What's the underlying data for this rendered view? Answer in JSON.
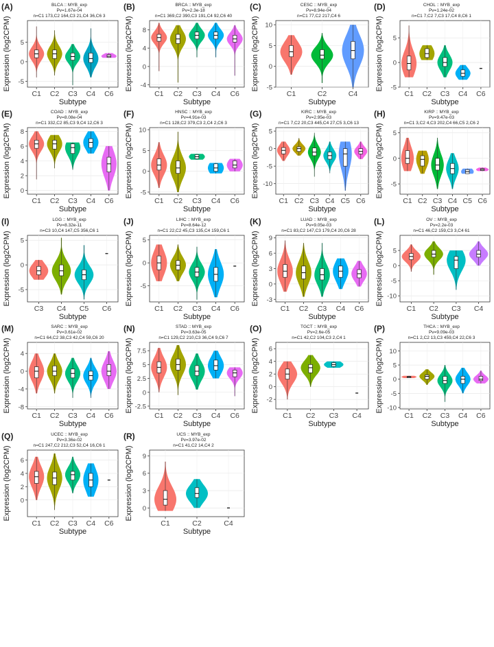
{
  "figure": {
    "ylabel": "Expression (log2CPM)",
    "xlabel": "Subtype"
  },
  "colors": {
    "C1": "#F8766D",
    "C2": "#A3A500",
    "C3": "#00BF7D",
    "C4": "#00B0F6",
    "C5": "#5E8DF0",
    "C6": "#E76BF3",
    "grid": "#d9d9d9",
    "axis": "#333333"
  },
  "chart_data": [
    {
      "type": "violin",
      "panel": "(A)",
      "title": "BLCA :: MYB_exp",
      "pv": "Pv=1.67e-04",
      "counts": "n=C1 173,C2 164,C3 21,C4 36,C6 3",
      "xlabel": "Subtype",
      "ylabel": "Expression (log2CPM)",
      "ylim": [
        -6.5,
        10.5
      ],
      "yticks": [
        -5,
        0,
        5
      ],
      "categories": [
        "C1",
        "C2",
        "C3",
        "C4",
        "C6"
      ],
      "colors": [
        "#F8766D",
        "#A3A500",
        "#00BF7D",
        "#00A5C4",
        "#E76BF3"
      ],
      "median": [
        2,
        2,
        1.3,
        0.8,
        1.4
      ],
      "q1": [
        1,
        0.8,
        0.4,
        -0.2,
        1.1
      ],
      "q3": [
        3,
        3,
        2.2,
        2.2,
        1.8
      ],
      "min": [
        -4,
        -3.5,
        -6,
        -4,
        1
      ],
      "max": [
        9,
        8,
        4.5,
        8.5,
        2.2
      ]
    },
    {
      "type": "violin",
      "panel": "(B)",
      "title": "BRCA :: MYB_exp",
      "pv": "Pv=2.3e-18",
      "counts": "n=C1 369,C2 390,C3 191,C4 92,C6 40",
      "xlabel": "Subtype",
      "ylabel": "Expression (log2CPM)",
      "ylim": [
        -4.5,
        10
      ],
      "yticks": [
        -4,
        0,
        4,
        8
      ],
      "categories": [
        "C1",
        "C2",
        "C3",
        "C4",
        "C6"
      ],
      "colors": [
        "#F8766D",
        "#A3A500",
        "#00BF7D",
        "#00B0F6",
        "#E76BF3"
      ],
      "median": [
        6.3,
        6,
        6.8,
        6.8,
        6
      ],
      "q1": [
        5.5,
        5,
        6,
        6,
        5.3
      ],
      "q3": [
        7,
        7,
        7.5,
        7.5,
        6.8
      ],
      "min": [
        -1,
        -3.5,
        2,
        2,
        -2
      ],
      "max": [
        9.5,
        9,
        9.5,
        9.5,
        9
      ]
    },
    {
      "type": "violin",
      "panel": "(C)",
      "title": "CESC :: MYB_exp",
      "pv": "Pv=8.94e-04",
      "counts": "n=C1 77,C2 217,C4 6",
      "xlabel": "Subtype",
      "ylabel": "Expression (log2CPM)",
      "ylim": [
        -5,
        11
      ],
      "yticks": [
        -5,
        0,
        5,
        10
      ],
      "categories": [
        "C1",
        "C2",
        "C4"
      ],
      "colors": [
        "#F8766D",
        "#00BA38",
        "#619CFF"
      ],
      "median": [
        3.5,
        2.7,
        3.8
      ],
      "q1": [
        2.3,
        1.8,
        1.8
      ],
      "q3": [
        5,
        4,
        6
      ],
      "min": [
        -2,
        -4,
        -5
      ],
      "max": [
        7.5,
        8,
        10
      ]
    },
    {
      "type": "violin",
      "panel": "(D)",
      "title": "CHOL :: MYB_exp",
      "pv": "Pv=1.24e-02",
      "counts": "n=C1 7,C2 7,C3 17,C4 8,C6 1",
      "xlabel": "Subtype",
      "ylabel": "Expression (log2CPM)",
      "ylim": [
        -5,
        8.5
      ],
      "yticks": [
        -5,
        0,
        5
      ],
      "categories": [
        "C1",
        "C2",
        "C3",
        "C4",
        "C6"
      ],
      "colors": [
        "#F8766D",
        "#A3A500",
        "#00BF7D",
        "#00B0F6",
        "#E76BF3"
      ],
      "median": [
        -0.2,
        1.8,
        0,
        -2.2,
        -1.2
      ],
      "q1": [
        -1.5,
        1,
        -0.8,
        -2.8,
        -1.2
      ],
      "q3": [
        1.3,
        2.8,
        1,
        -1.5,
        -1.2
      ],
      "min": [
        -3,
        0.5,
        -3,
        -3.5,
        -1.2
      ],
      "max": [
        7.5,
        3.5,
        3.5,
        -0.5,
        -1.2
      ]
    },
    {
      "type": "violin",
      "panel": "(E)",
      "title": "COAD :: MYB_exp",
      "pv": "Pv=8.08e-04",
      "counts": "n=C1 332,C2 85,C3 9,C4 12,C6 3",
      "xlabel": "Subtype",
      "ylabel": "Expression (log2CPM)",
      "ylim": [
        -0.5,
        8.5
      ],
      "yticks": [
        0,
        2,
        4,
        6,
        8
      ],
      "categories": [
        "C1",
        "C2",
        "C3",
        "C4",
        "C6"
      ],
      "colors": [
        "#F8766D",
        "#A3A500",
        "#00BF7D",
        "#00B0F6",
        "#E76BF3"
      ],
      "median": [
        6.3,
        6.3,
        5.8,
        6.5,
        3.6
      ],
      "q1": [
        5.7,
        5.6,
        5,
        5.8,
        2.5
      ],
      "q3": [
        6.8,
        6.8,
        6.3,
        7,
        4.5
      ],
      "min": [
        1.5,
        3,
        2.8,
        5,
        0
      ],
      "max": [
        8,
        7.5,
        6.5,
        8,
        6
      ]
    },
    {
      "type": "violin",
      "panel": "(F)",
      "title": "HNSC :: MYB_exp",
      "pv": "Pv=4.91e-03",
      "counts": "n=C1 128,C2 379,C3 2,C4 2,C6 3",
      "xlabel": "Subtype",
      "ylabel": "Expression (log2CPM)",
      "ylim": [
        -5.5,
        10.5
      ],
      "yticks": [
        -5,
        0,
        5,
        10
      ],
      "categories": [
        "C1",
        "C2",
        "C3",
        "C4",
        "C6"
      ],
      "colors": [
        "#F8766D",
        "#A3A500",
        "#00BF7D",
        "#00B0F6",
        "#E76BF3"
      ],
      "median": [
        1.5,
        0.8,
        3.5,
        0.8,
        1.5
      ],
      "q1": [
        0.3,
        -0.5,
        3,
        0,
        0.8
      ],
      "q3": [
        3,
        2.5,
        4,
        1.8,
        2.5
      ],
      "min": [
        -4,
        -5,
        2.8,
        -0.5,
        0
      ],
      "max": [
        7,
        9.5,
        4.2,
        2,
        3
      ]
    },
    {
      "type": "violin",
      "panel": "(G)",
      "title": "KIRC :: MYB_exp",
      "pv": "Pv=2.95e-03",
      "counts": "n=C1 7,C2 20,C3 445,C4 27,C5 3,C6 13",
      "xlabel": "Subtype",
      "ylabel": "Expression (log2CPM)",
      "ylim": [
        -13,
        6
      ],
      "yticks": [
        -10,
        -5,
        0,
        5
      ],
      "categories": [
        "C1",
        "C2",
        "C3",
        "C4",
        "C5",
        "C6"
      ],
      "colors": [
        "#F8766D",
        "#B79F00",
        "#00BA38",
        "#00BFC4",
        "#619CFF",
        "#F564E3"
      ],
      "median": [
        -0.5,
        0,
        -1,
        -2,
        -1.5,
        -0.8
      ],
      "q1": [
        -1.5,
        -0.8,
        -2,
        -3,
        -5,
        -1.5
      ],
      "q3": [
        0.3,
        0.5,
        0.2,
        -1,
        0,
        0
      ],
      "min": [
        -3.5,
        -2,
        -8,
        -7,
        -12,
        -3
      ],
      "max": [
        2,
        3,
        4.5,
        2,
        2,
        2
      ]
    },
    {
      "type": "violin",
      "panel": "(H)",
      "title": "KIRP :: MYB_exp",
      "pv": "Pv=9.47e-03",
      "counts": "n=C1 3,C2 4,C3 202,C4 66,C5 2,C6 2",
      "xlabel": "Subtype",
      "ylabel": "Expression (log2CPM)",
      "ylim": [
        -7,
        6
      ],
      "yticks": [
        -5,
        0,
        5
      ],
      "categories": [
        "C1",
        "C2",
        "C3",
        "C4",
        "C5",
        "C6"
      ],
      "colors": [
        "#F8766D",
        "#B79F00",
        "#00BA38",
        "#00BFC4",
        "#619CFF",
        "#F564E3"
      ],
      "median": [
        0,
        -0.2,
        -1.3,
        -2,
        -2.6,
        -2.2
      ],
      "q1": [
        -1,
        -1.5,
        -2.3,
        -3,
        -3,
        -2.4
      ],
      "q3": [
        1.5,
        0.5,
        0,
        -1,
        -2.2,
        -2
      ],
      "min": [
        -2.5,
        -3,
        -6,
        -6,
        -3,
        -2.5
      ],
      "max": [
        4,
        1.5,
        4,
        1,
        -2,
        -1.8
      ]
    },
    {
      "type": "violin",
      "panel": "(I)",
      "title": "LGG :: MYB_exp",
      "pv": "Pv=8.32e-11",
      "counts": "n=C3 10,C4 147,C5 356,C6 1",
      "xlabel": "Subtype",
      "ylabel": "Expression (log2CPM)",
      "ylim": [
        -7.5,
        6
      ],
      "yticks": [
        -5,
        0,
        5
      ],
      "categories": [
        "C3",
        "C4",
        "C5",
        "C6"
      ],
      "colors": [
        "#F8766D",
        "#7CAE00",
        "#00BFC4",
        "#C77CFF"
      ],
      "median": [
        -1.2,
        -1.2,
        -2,
        2.3
      ],
      "q1": [
        -2,
        -2.2,
        -3,
        2.3
      ],
      "q3": [
        -0.3,
        0,
        -1,
        2.3
      ],
      "min": [
        -3,
        -6,
        -7,
        2.3
      ],
      "max": [
        1,
        5.5,
        4,
        2.3
      ]
    },
    {
      "type": "violin",
      "panel": "(J)",
      "title": "LIHC :: MYB_exp",
      "pv": "Pv=8.64e-12",
      "counts": "n=C1 22,C2 45,C3 135,C4 159,C6 1",
      "xlabel": "Subtype",
      "ylabel": "Expression (log2CPM)",
      "ylim": [
        -8.5,
        6
      ],
      "yticks": [
        -5,
        0,
        5
      ],
      "categories": [
        "C1",
        "C2",
        "C3",
        "C4",
        "C6"
      ],
      "colors": [
        "#F8766D",
        "#A3A500",
        "#00BF7D",
        "#00B0F6",
        "#E76BF3"
      ],
      "median": [
        0,
        -0.5,
        -2,
        -2.5,
        -0.7
      ],
      "q1": [
        -1.5,
        -1.5,
        -3,
        -4,
        -0.7
      ],
      "q3": [
        1.5,
        0.5,
        -1,
        -1,
        -0.7
      ],
      "min": [
        -4,
        -4,
        -8,
        -7.5,
        -0.7
      ],
      "max": [
        4,
        4,
        3.5,
        3,
        -0.7
      ]
    },
    {
      "type": "violin",
      "panel": "(K)",
      "title": "LUAD :: MYB_exp",
      "pv": "Pv=9.05e-03",
      "counts": "n=C1 83,C2 147,C3 179,C4 20,C6 28",
      "xlabel": "Subtype",
      "ylabel": "Expression (log2CPM)",
      "ylim": [
        -3.5,
        9.5
      ],
      "yticks": [
        -3,
        0,
        3,
        6,
        9
      ],
      "categories": [
        "C1",
        "C2",
        "C3",
        "C4",
        "C6"
      ],
      "colors": [
        "#F8766D",
        "#A3A500",
        "#00BF7D",
        "#00B0F6",
        "#E76BF3"
      ],
      "median": [
        2.5,
        2.2,
        1.8,
        2.5,
        2
      ],
      "q1": [
        1.3,
        1,
        0.8,
        1.3,
        1.2
      ],
      "q3": [
        3.8,
        3.5,
        3,
        3.5,
        2.8
      ],
      "min": [
        -1.5,
        -2.5,
        -2.5,
        -1,
        -0.5
      ],
      "max": [
        8.5,
        8,
        8,
        5,
        4.5
      ]
    },
    {
      "type": "violin",
      "panel": "(L)",
      "title": "OV :: MYB_exp",
      "pv": "Pv=2.2e-03",
      "counts": "n=C1 46,C2 159,C3 3,C4 61",
      "xlabel": "Subtype",
      "ylabel": "Expression (log2CPM)",
      "ylim": [
        -12,
        10
      ],
      "yticks": [
        -10,
        -5,
        0,
        5
      ],
      "categories": [
        "C1",
        "C2",
        "C3",
        "C4"
      ],
      "colors": [
        "#F8766D",
        "#7CAE00",
        "#00BFC4",
        "#C77CFF"
      ],
      "median": [
        3,
        3.8,
        1.8,
        3.8
      ],
      "q1": [
        2,
        2.8,
        -1,
        2.8
      ],
      "q3": [
        4,
        5,
        3,
        5
      ],
      "min": [
        -2,
        -3,
        -8,
        0
      ],
      "max": [
        7,
        8,
        5,
        8
      ]
    },
    {
      "type": "violin",
      "panel": "(M)",
      "title": "SARC :: MYB_exp",
      "pv": "Pv=3.61e-02",
      "counts": "n=C1 64,C2 38,C3 42,C4 59,C6 20",
      "xlabel": "Subtype",
      "ylabel": "Expression (log2CPM)",
      "ylim": [
        -8.5,
        6.5
      ],
      "yticks": [
        -8,
        -4,
        0,
        4
      ],
      "categories": [
        "C1",
        "C2",
        "C3",
        "C4",
        "C6"
      ],
      "colors": [
        "#F8766D",
        "#A3A500",
        "#00BF7D",
        "#00B0F6",
        "#E76BF3"
      ],
      "median": [
        0,
        0,
        -0.5,
        -1,
        0
      ],
      "q1": [
        -1.5,
        -1,
        -1.5,
        -2,
        -1
      ],
      "q3": [
        1,
        1.2,
        0.5,
        0,
        1.5
      ],
      "min": [
        -5,
        -5,
        -6,
        -6,
        -4
      ],
      "max": [
        4,
        4,
        3,
        3,
        4.5
      ]
    },
    {
      "type": "violin",
      "panel": "(N)",
      "title": "STAD :: MYB_exp",
      "pv": "Pv=3.63e-05",
      "counts": "n=C1 129,C2 210,C3 36,C4 9,C6 7",
      "xlabel": "Subtype",
      "ylabel": "Expression (log2CPM)",
      "ylim": [
        -3,
        9
      ],
      "yticks": [
        -2.5,
        0,
        2.5,
        5,
        7.5
      ],
      "categories": [
        "C1",
        "C2",
        "C3",
        "C4",
        "C6"
      ],
      "colors": [
        "#F8766D",
        "#A3A500",
        "#00BF7D",
        "#00B0F6",
        "#E76BF3"
      ],
      "median": [
        4.5,
        5,
        3.8,
        4.8,
        3.5
      ],
      "q1": [
        3.5,
        4,
        3,
        4,
        2.8
      ],
      "q3": [
        5.5,
        6,
        4.8,
        5.8,
        4
      ],
      "min": [
        0,
        -0.5,
        0.5,
        2.5,
        -0.7
      ],
      "max": [
        8,
        8.5,
        7,
        7.5,
        4.5
      ]
    },
    {
      "type": "violin",
      "panel": "(O)",
      "title": "TGCT :: MYB_exp",
      "pv": "Pv=2.6e-05",
      "counts": "n=C1 42,C2 104,C3 2,C4 1",
      "xlabel": "Subtype",
      "ylabel": "Expression (log2CPM)",
      "ylim": [
        -3.5,
        7
      ],
      "yticks": [
        -2,
        0,
        2,
        4,
        6
      ],
      "categories": [
        "C1",
        "C2",
        "C3",
        "C4"
      ],
      "colors": [
        "#F8766D",
        "#7CAE00",
        "#00BFC4",
        "#C77CFF"
      ],
      "median": [
        2,
        3,
        3.5,
        -1
      ],
      "q1": [
        1.2,
        2.2,
        3.2,
        -1
      ],
      "q3": [
        2.8,
        3.5,
        3.8,
        -1
      ],
      "min": [
        -2,
        0,
        3,
        -1
      ],
      "max": [
        4,
        5,
        4,
        -1
      ]
    },
    {
      "type": "violin",
      "panel": "(P)",
      "title": "THCA :: MYB_exp",
      "pv": "Pv=9.09e-03",
      "counts": "n=C1 2,C2 13,C3 459,C4 22,C6 3",
      "xlabel": "Subtype",
      "ylabel": "Expression (log2CPM)",
      "ylim": [
        -10.5,
        13
      ],
      "yticks": [
        -10,
        -5,
        0,
        5,
        10
      ],
      "categories": [
        "C1",
        "C2",
        "C3",
        "C4",
        "C6"
      ],
      "colors": [
        "#F8766D",
        "#A3A500",
        "#00BF7D",
        "#00B0F6",
        "#E76BF3"
      ],
      "median": [
        0.8,
        1,
        -0.5,
        0,
        0
      ],
      "q1": [
        0.5,
        0,
        -1.5,
        -1.5,
        -0.5
      ],
      "q3": [
        1,
        1.5,
        1,
        1,
        1
      ],
      "min": [
        0.4,
        -2,
        -8,
        -5,
        -1.5
      ],
      "max": [
        1.2,
        3.5,
        5,
        4,
        3
      ]
    },
    {
      "type": "violin",
      "panel": "(Q)",
      "title": "UCEC :: MYB_exp",
      "pv": "Pv=3.36e-02",
      "counts": "n=C1 247,C2 212,C3 52,C4 16,C6 1",
      "xlabel": "Subtype",
      "ylabel": "Expression (log2CPM)",
      "ylim": [
        -2.5,
        7.5
      ],
      "yticks": [
        0,
        2,
        4,
        6
      ],
      "categories": [
        "C1",
        "C2",
        "C3",
        "C4",
        "C6"
      ],
      "colors": [
        "#F8766D",
        "#A3A500",
        "#00BF7D",
        "#00B0F6",
        "#E76BF3"
      ],
      "median": [
        3.5,
        3.3,
        3.8,
        3,
        3
      ],
      "q1": [
        2.5,
        2.3,
        3,
        2,
        3
      ],
      "q3": [
        4.3,
        4.2,
        4.3,
        4,
        3
      ],
      "min": [
        0,
        -1.5,
        1,
        0.5,
        3
      ],
      "max": [
        6.5,
        7,
        6.5,
        5.5,
        3
      ]
    },
    {
      "type": "violin",
      "panel": "(R)",
      "title": "UCS :: MYB_exp",
      "pv": "Pv=3.97e-02",
      "counts": "n=C1 41,C2 14,C4 2",
      "xlabel": "Subtype",
      "ylabel": "Expression (log2CPM)",
      "ylim": [
        -1.5,
        10
      ],
      "yticks": [
        0,
        3,
        6,
        9
      ],
      "categories": [
        "C1",
        "C2",
        "C4"
      ],
      "colors": [
        "#F8766D",
        "#00BFC4",
        "#619CFF"
      ],
      "median": [
        1.5,
        2.5,
        0
      ],
      "q1": [
        0.5,
        1.8,
        0
      ],
      "q3": [
        3,
        3.5,
        0
      ],
      "min": [
        -0.5,
        0,
        0
      ],
      "max": [
        8,
        5,
        0
      ]
    }
  ]
}
